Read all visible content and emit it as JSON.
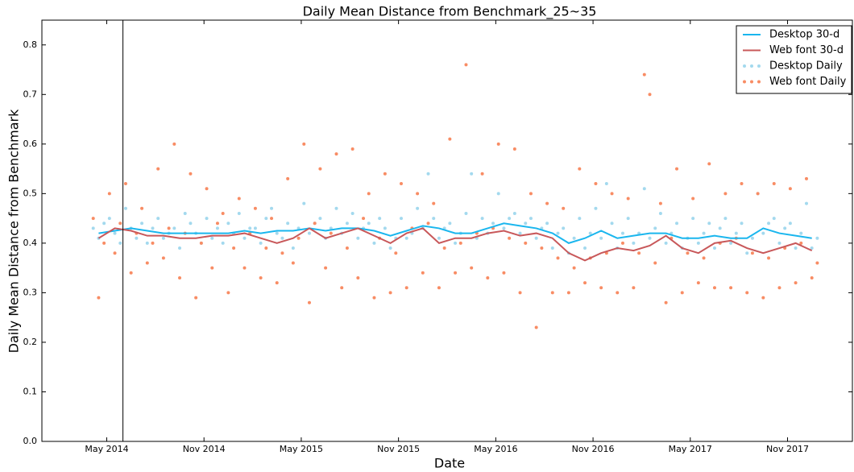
{
  "chart_data": {
    "type": "line",
    "title": "Daily Mean Distance from Benchmark_25~35",
    "x_label": "Date",
    "y_label": "Daily Mean Distance from Benchmark",
    "xlim": [
      "2014-01",
      "2018-03"
    ],
    "ylim": [
      0,
      0.85
    ],
    "xticks": [
      {
        "value": "2014-05",
        "label": "May 2014"
      },
      {
        "value": "2014-11",
        "label": "Nov 2014"
      },
      {
        "value": "2015-05",
        "label": "May 2015"
      },
      {
        "value": "2015-11",
        "label": "Nov 2015"
      },
      {
        "value": "2016-05",
        "label": "May 2016"
      },
      {
        "value": "2016-11",
        "label": "Nov 2016"
      },
      {
        "value": "2017-05",
        "label": "May 2017"
      },
      {
        "value": "2017-11",
        "label": "Nov 2017"
      }
    ],
    "yticks": [
      {
        "value": 0,
        "label": "0.0"
      },
      0.1,
      0.2,
      0.3,
      0.4,
      0.5,
      0.6,
      0.7,
      0.8
    ],
    "grid": false,
    "legend": "upper right",
    "vline_x": "2014-06",
    "x": [
      "2014-04",
      "2014-05",
      "2014-06",
      "2014-07",
      "2014-08",
      "2014-09",
      "2014-10",
      "2014-11",
      "2014-12",
      "2015-01",
      "2015-02",
      "2015-03",
      "2015-04",
      "2015-05",
      "2015-06",
      "2015-07",
      "2015-08",
      "2015-09",
      "2015-10",
      "2015-11",
      "2015-12",
      "2016-01",
      "2016-02",
      "2016-03",
      "2016-04",
      "2016-05",
      "2016-06",
      "2016-07",
      "2016-08",
      "2016-09",
      "2016-10",
      "2016-11",
      "2016-12",
      "2017-01",
      "2017-02",
      "2017-03",
      "2017-04",
      "2017-05",
      "2017-06",
      "2017-07",
      "2017-08",
      "2017-09",
      "2017-10",
      "2017-11",
      "2017-12"
    ],
    "series": [
      {
        "name": "Desktop 30-d",
        "kind": "line",
        "color": "#1ab6ee",
        "values": [
          0.42,
          0.425,
          0.43,
          0.425,
          0.42,
          0.42,
          0.42,
          0.42,
          0.42,
          0.425,
          0.42,
          0.425,
          0.425,
          0.43,
          0.425,
          0.43,
          0.43,
          0.425,
          0.415,
          0.425,
          0.435,
          0.43,
          0.42,
          0.42,
          0.43,
          0.44,
          0.435,
          0.43,
          0.42,
          0.4,
          0.41,
          0.425,
          0.41,
          0.415,
          0.42,
          0.42,
          0.41,
          0.41,
          0.415,
          0.41,
          0.41,
          0.43,
          0.42,
          0.415,
          0.41
        ]
      },
      {
        "name": "Web font 30-d",
        "kind": "line",
        "color": "#c8585a",
        "values": [
          0.41,
          0.43,
          0.425,
          0.415,
          0.415,
          0.41,
          0.41,
          0.415,
          0.415,
          0.42,
          0.41,
          0.4,
          0.41,
          0.43,
          0.41,
          0.42,
          0.43,
          0.415,
          0.4,
          0.42,
          0.43,
          0.4,
          0.41,
          0.41,
          0.42,
          0.425,
          0.415,
          0.42,
          0.41,
          0.38,
          0.365,
          0.38,
          0.39,
          0.385,
          0.395,
          0.415,
          0.39,
          0.38,
          0.4,
          0.405,
          0.39,
          0.38,
          0.39,
          0.4,
          0.385
        ]
      },
      {
        "name": "Desktop Daily",
        "kind": "scatter",
        "color": "#a3d9ee",
        "values": [
          [
            0.43,
            0.41,
            0.44
          ],
          [
            0.45,
            0.42,
            0.4
          ],
          [
            0.47,
            0.43,
            0.41
          ],
          [
            0.44,
            0.4,
            0.43
          ],
          [
            0.45,
            0.41,
            0.42
          ],
          [
            0.43,
            0.39,
            0.46
          ],
          [
            0.44,
            0.42,
            0.4
          ],
          [
            0.45,
            0.41,
            0.43
          ],
          [
            0.4,
            0.44,
            0.42
          ],
          [
            0.46,
            0.41,
            0.43
          ],
          [
            0.43,
            0.4,
            0.45
          ],
          [
            0.47,
            0.42,
            0.41
          ],
          [
            0.44,
            0.39,
            0.43
          ],
          [
            0.48,
            0.42,
            0.44
          ],
          [
            0.45,
            0.41,
            0.43
          ],
          [
            0.47,
            0.42,
            0.44
          ],
          [
            0.46,
            0.41,
            0.43
          ],
          [
            0.44,
            0.4,
            0.45
          ],
          [
            0.43,
            0.39,
            0.41
          ],
          [
            0.45,
            0.41,
            0.42
          ],
          [
            0.47,
            0.43,
            0.54
          ],
          [
            0.45,
            0.41,
            0.43
          ],
          [
            0.44,
            0.4,
            0.42
          ],
          [
            0.46,
            0.54,
            0.41
          ],
          [
            0.45,
            0.42,
            0.44
          ],
          [
            0.5,
            0.43,
            0.45
          ],
          [
            0.46,
            0.42,
            0.44
          ],
          [
            0.45,
            0.41,
            0.43
          ],
          [
            0.44,
            0.39,
            0.42
          ],
          [
            0.43,
            0.38,
            0.41
          ],
          [
            0.45,
            0.39,
            0.42
          ],
          [
            0.47,
            0.41,
            0.52
          ],
          [
            0.44,
            0.39,
            0.42
          ],
          [
            0.45,
            0.4,
            0.42
          ],
          [
            0.51,
            0.41,
            0.43
          ],
          [
            0.46,
            0.4,
            0.42
          ],
          [
            0.44,
            0.39,
            0.41
          ],
          [
            0.45,
            0.4,
            0.42
          ],
          [
            0.44,
            0.39,
            0.43
          ],
          [
            0.45,
            0.4,
            0.42
          ],
          [
            0.44,
            0.38,
            0.41
          ],
          [
            0.5,
            0.42,
            0.44
          ],
          [
            0.45,
            0.4,
            0.43
          ],
          [
            0.44,
            0.39,
            0.42
          ],
          [
            0.48,
            0.39,
            0.41
          ]
        ]
      },
      {
        "name": "Web font Daily",
        "kind": "scatter",
        "color": "#f88c64",
        "values": [
          [
            0.45,
            0.29,
            0.4
          ],
          [
            0.5,
            0.38,
            0.44
          ],
          [
            0.52,
            0.34,
            0.42
          ],
          [
            0.47,
            0.36,
            0.4
          ],
          [
            0.55,
            0.37,
            0.43
          ],
          [
            0.6,
            0.33,
            0.42
          ],
          [
            0.54,
            0.29,
            0.4
          ],
          [
            0.51,
            0.35,
            0.44
          ],
          [
            0.46,
            0.3,
            0.39
          ],
          [
            0.49,
            0.35,
            0.42
          ],
          [
            0.47,
            0.33,
            0.39
          ],
          [
            0.45,
            0.32,
            0.38
          ],
          [
            0.53,
            0.36,
            0.41
          ],
          [
            0.6,
            0.28,
            0.44
          ],
          [
            0.55,
            0.35,
            0.42
          ],
          [
            0.58,
            0.31,
            0.39
          ],
          [
            0.59,
            0.33,
            0.45
          ],
          [
            0.5,
            0.29,
            0.41
          ],
          [
            0.54,
            0.3,
            0.38
          ],
          [
            0.52,
            0.31,
            0.43
          ],
          [
            0.5,
            0.34,
            0.44
          ],
          [
            0.48,
            0.31,
            0.39
          ],
          [
            0.61,
            0.34,
            0.4
          ],
          [
            0.76,
            0.35,
            0.42
          ],
          [
            0.54,
            0.33,
            0.43
          ],
          [
            0.6,
            0.34,
            0.41
          ],
          [
            0.59,
            0.3,
            0.4
          ],
          [
            0.5,
            0.23,
            0.39
          ],
          [
            0.48,
            0.3,
            0.37
          ],
          [
            0.47,
            0.3,
            0.35
          ],
          [
            0.55,
            0.32,
            0.37
          ],
          [
            0.52,
            0.31,
            0.38
          ],
          [
            0.5,
            0.3,
            0.4
          ],
          [
            0.49,
            0.31,
            0.38
          ],
          [
            0.74,
            0.7,
            0.36
          ],
          [
            0.48,
            0.28,
            0.41
          ],
          [
            0.55,
            0.3,
            0.38
          ],
          [
            0.49,
            0.32,
            0.37
          ],
          [
            0.56,
            0.31,
            0.4
          ],
          [
            0.5,
            0.31,
            0.41
          ],
          [
            0.52,
            0.3,
            0.38
          ],
          [
            0.5,
            0.29,
            0.37
          ],
          [
            0.52,
            0.31,
            0.39
          ],
          [
            0.51,
            0.32,
            0.4
          ],
          [
            0.53,
            0.33,
            0.36
          ]
        ]
      }
    ]
  }
}
